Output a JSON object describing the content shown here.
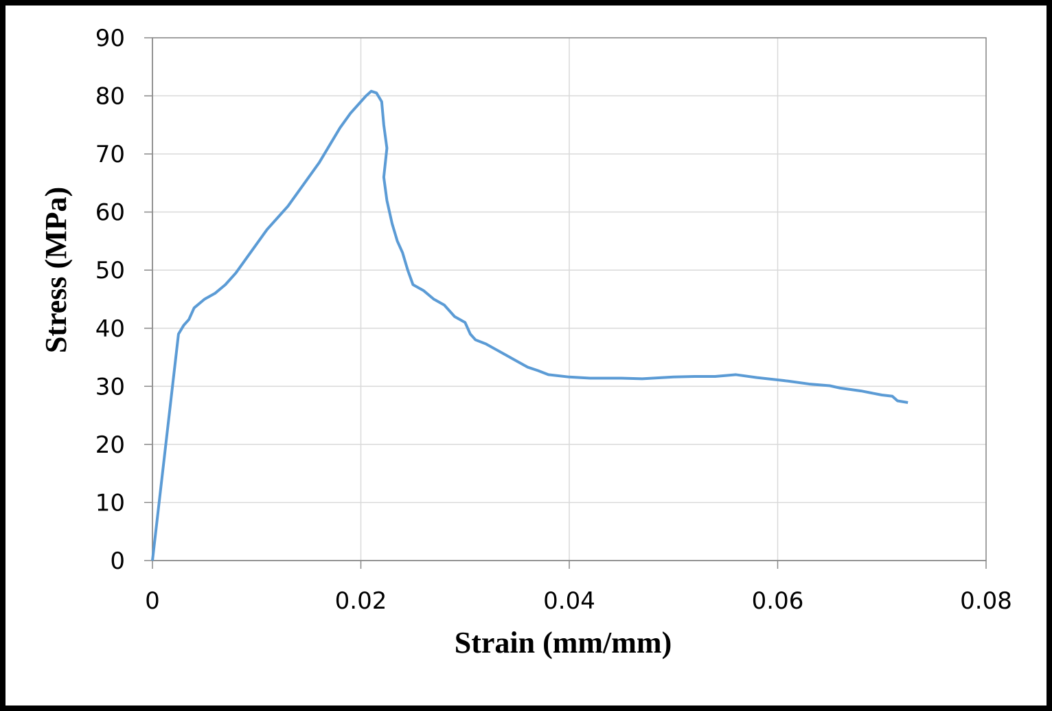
{
  "chart_data": {
    "type": "line",
    "x_label": "Strain (mm/mm)",
    "y_label": "Stress (MPa)",
    "xlim": [
      0,
      0.08
    ],
    "xticks": [
      0,
      0.02,
      0.04,
      0.06,
      0.08
    ],
    "ylim": [
      0,
      90
    ],
    "yticks": [
      0,
      10,
      20,
      30,
      40,
      50,
      60,
      70,
      80,
      90
    ],
    "grid": true,
    "series": [
      {
        "color": "#5b9bd5",
        "x": [
          0,
          0.0025,
          0.003,
          0.0035,
          0.004,
          0.005,
          0.006,
          0.007,
          0.008,
          0.009,
          0.01,
          0.011,
          0.012,
          0.013,
          0.014,
          0.015,
          0.016,
          0.017,
          0.018,
          0.019,
          0.02,
          0.0205,
          0.021,
          0.0215,
          0.022,
          0.0222,
          0.0225,
          0.0222,
          0.0225,
          0.023,
          0.0235,
          0.024,
          0.0245,
          0.025,
          0.026,
          0.027,
          0.028,
          0.029,
          0.03,
          0.0305,
          0.031,
          0.032,
          0.033,
          0.034,
          0.035,
          0.036,
          0.037,
          0.038,
          0.04,
          0.042,
          0.045,
          0.047,
          0.05,
          0.052,
          0.054,
          0.056,
          0.058,
          0.06,
          0.061,
          0.063,
          0.065,
          0.066,
          0.068,
          0.07,
          0.071,
          0.0715,
          0.0725
        ],
        "values": [
          0,
          39,
          40.5,
          41.5,
          43.5,
          45,
          46,
          47.5,
          49.5,
          52,
          54.5,
          57,
          59,
          61,
          63.5,
          66,
          68.5,
          71.5,
          74.5,
          77,
          79,
          80,
          80.8,
          80.5,
          79,
          75,
          71,
          66,
          62,
          58,
          55,
          53,
          50,
          47.5,
          46.5,
          45,
          44,
          42,
          41,
          39,
          38,
          37.3,
          36.3,
          35.3,
          34.3,
          33.3,
          32.7,
          32,
          31.6,
          31.4,
          31.4,
          31.3,
          31.6,
          31.7,
          31.7,
          32,
          31.5,
          31.1,
          30.9,
          30.4,
          30.1,
          29.7,
          29.2,
          28.5,
          28.3,
          27.5,
          27.2
        ]
      }
    ]
  }
}
